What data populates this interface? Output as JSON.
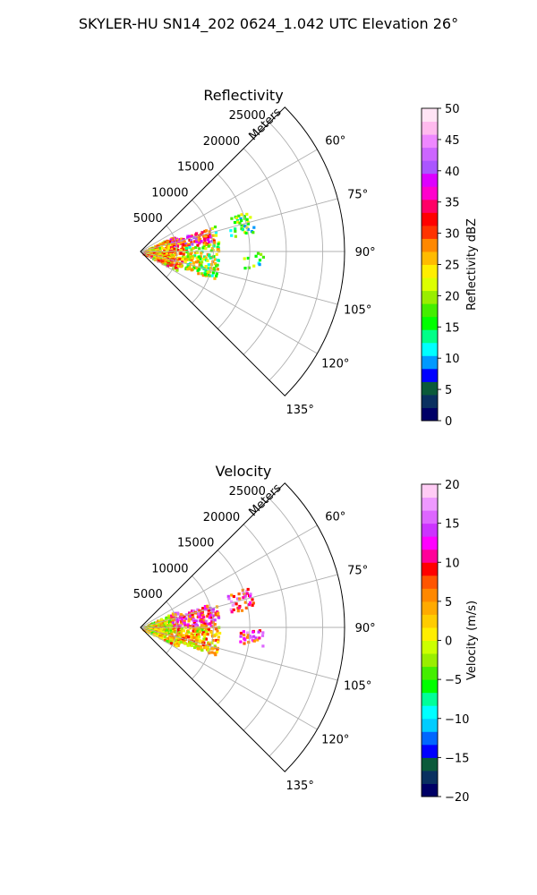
{
  "figure": {
    "suptitle": "SKYLER-HU  SN14_202  0624_1.042 UTC Elevation 26°"
  },
  "chart_data": [
    {
      "type": "polar-sector",
      "title": "Reflectivity",
      "radial_axis_label": "Meters",
      "radial_ticks": [
        "5000",
        "10000",
        "15000",
        "20000",
        "25000"
      ],
      "radial_tick_values": [
        5000,
        10000,
        15000,
        20000,
        25000
      ],
      "rmax": 28000,
      "azimuth_range_deg": [
        45,
        135
      ],
      "azimuth_ticks": [
        "60°",
        "75°",
        "90°",
        "105°",
        "120°",
        "135°"
      ],
      "azimuth_tick_values": [
        60,
        75,
        90,
        105,
        120,
        135
      ],
      "grid": true,
      "field": "reflectivity",
      "colorbar": {
        "label": "Reflectivity dBZ",
        "ticks": [
          "0",
          "5",
          "10",
          "15",
          "20",
          "25",
          "30",
          "35",
          "40",
          "45",
          "50"
        ],
        "min": 0,
        "max": 50,
        "colors": [
          "#000066",
          "#0a3060",
          "#0b5a3a",
          "#0000ff",
          "#0099ff",
          "#00ffff",
          "#00ff88",
          "#00ff00",
          "#44ee00",
          "#99ee00",
          "#ddff00",
          "#ffee00",
          "#ffbb00",
          "#ff8800",
          "#ff3300",
          "#ff0000",
          "#ff0066",
          "#ff00cc",
          "#dd00ff",
          "#aa55ff",
          "#cc66ff",
          "#ee88ff",
          "#ffbbee",
          "#ffe4f5"
        ]
      },
      "echo_regions": [
        {
          "az": [
            64,
            116
          ],
          "r": [
            0,
            5500
          ],
          "fill": 0.55
        },
        {
          "az": [
            70,
            110
          ],
          "r": [
            5500,
            10500
          ],
          "fill": 0.5
        },
        {
          "az": [
            69,
            79
          ],
          "r": [
            12500,
            15500
          ],
          "fill": 0.45
        },
        {
          "az": [
            90,
            98
          ],
          "r": [
            13500,
            16500
          ],
          "fill": 0.3
        },
        {
          "az": [
            103,
            110
          ],
          "r": [
            5500,
            9500
          ],
          "fill": 0.15
        }
      ]
    },
    {
      "type": "polar-sector",
      "title": "Velocity",
      "radial_axis_label": "Meters",
      "radial_ticks": [
        "5000",
        "10000",
        "15000",
        "20000",
        "25000"
      ],
      "radial_tick_values": [
        5000,
        10000,
        15000,
        20000,
        25000
      ],
      "rmax": 28000,
      "azimuth_range_deg": [
        45,
        135
      ],
      "azimuth_ticks": [
        "60°",
        "75°",
        "90°",
        "105°",
        "120°",
        "135°"
      ],
      "azimuth_tick_values": [
        60,
        75,
        90,
        105,
        120,
        135
      ],
      "grid": true,
      "field": "velocity",
      "colorbar": {
        "label": "Velocity (m/s)",
        "ticks": [
          "−20",
          "−15",
          "−10",
          "−5",
          "0",
          "5",
          "10",
          "15",
          "20"
        ],
        "min": -20,
        "max": 20,
        "colors": [
          "#000066",
          "#0a3060",
          "#0b5a3a",
          "#0000ff",
          "#0066ff",
          "#00ccff",
          "#00ffff",
          "#00ff99",
          "#00ff00",
          "#44ee00",
          "#99ee00",
          "#ccff00",
          "#ffee00",
          "#ffcc00",
          "#ffaa00",
          "#ff8800",
          "#ff5500",
          "#ff0000",
          "#ff0099",
          "#ff00ff",
          "#cc33ff",
          "#dd66ff",
          "#ee99ff",
          "#ffccf5"
        ]
      },
      "echo_regions": [
        {
          "az": [
            64,
            116
          ],
          "r": [
            0,
            5500
          ],
          "fill": 0.55
        },
        {
          "az": [
            70,
            110
          ],
          "r": [
            5500,
            10500
          ],
          "fill": 0.5
        },
        {
          "az": [
            69,
            79
          ],
          "r": [
            12500,
            15500
          ],
          "fill": 0.45
        },
        {
          "az": [
            90,
            98
          ],
          "r": [
            13500,
            16500
          ],
          "fill": 0.3
        },
        {
          "az": [
            103,
            110
          ],
          "r": [
            5500,
            9500
          ],
          "fill": 0.15
        }
      ]
    }
  ]
}
